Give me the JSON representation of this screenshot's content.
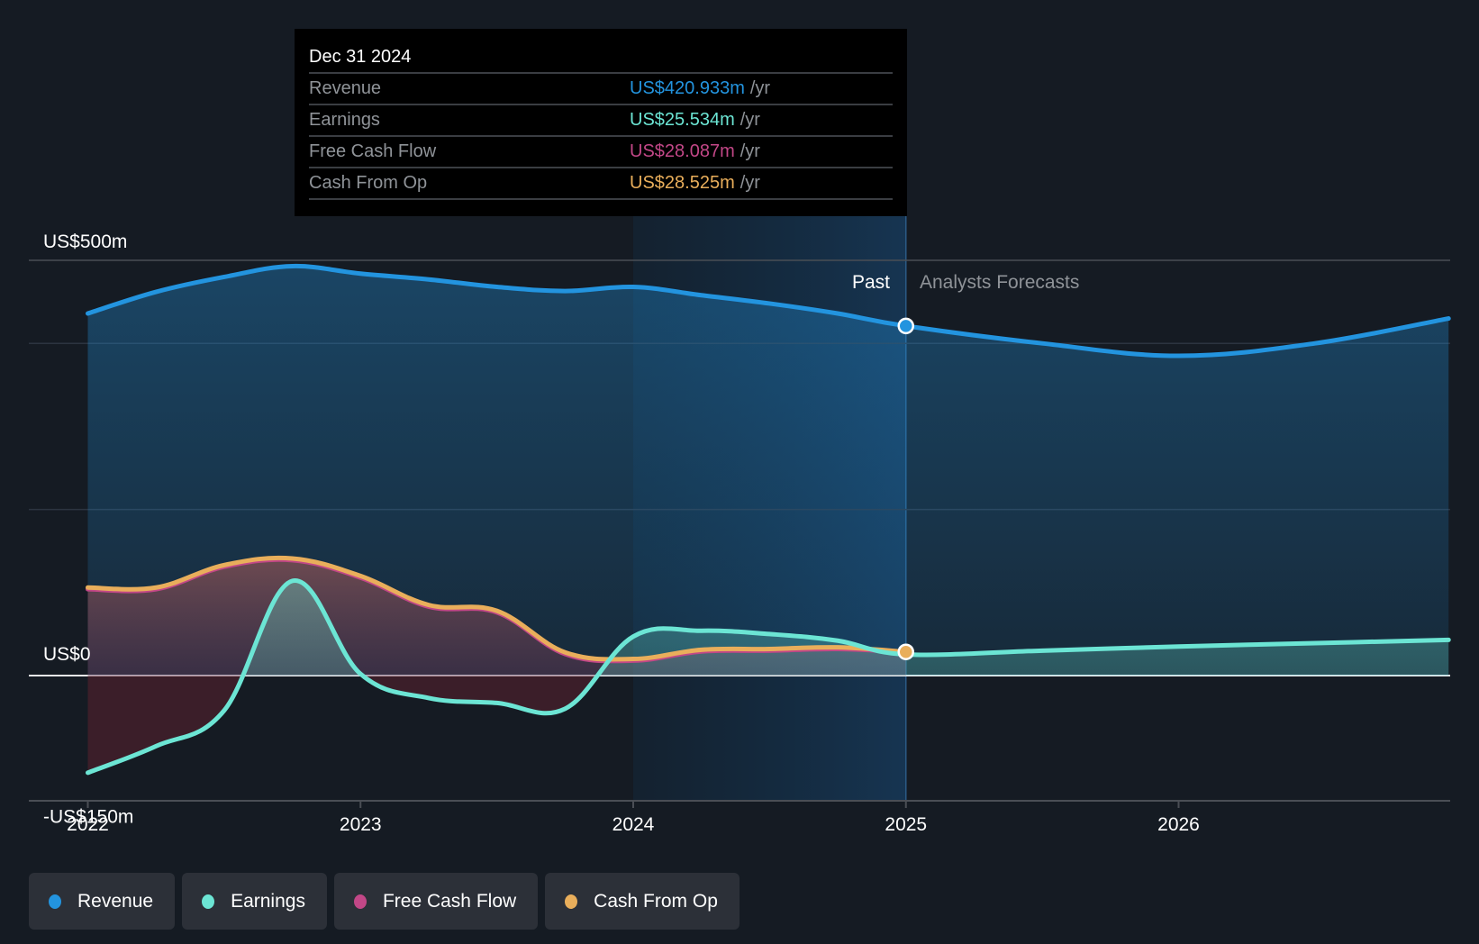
{
  "tooltip": {
    "date": "Dec 31 2024",
    "rows": [
      {
        "label": "Revenue",
        "value": "US$420.933m",
        "unit": "/yr",
        "color": "#2394df"
      },
      {
        "label": "Earnings",
        "value": "US$25.534m",
        "unit": "/yr",
        "color": "#6ce5d4"
      },
      {
        "label": "Free Cash Flow",
        "value": "US$28.087m",
        "unit": "/yr",
        "color": "#c24787"
      },
      {
        "label": "Cash From Op",
        "value": "US$28.525m",
        "unit": "/yr",
        "color": "#e9ae5b"
      }
    ]
  },
  "regions": {
    "past_label": "Past",
    "forecast_label": "Analysts Forecasts",
    "divider_x": 2025.0
  },
  "legend": [
    {
      "label": "Revenue",
      "color": "#2394df"
    },
    {
      "label": "Earnings",
      "color": "#6ce5d4"
    },
    {
      "label": "Free Cash Flow",
      "color": "#c24787"
    },
    {
      "label": "Cash From Op",
      "color": "#e9ae5b"
    }
  ],
  "chart_data": {
    "type": "area",
    "title": "",
    "xlabel": "",
    "ylabel": "",
    "x_ticks": [
      2022,
      2023,
      2024,
      2025,
      2026
    ],
    "x_tick_labels": [
      "2022",
      "2023",
      "2024",
      "2025",
      "2026"
    ],
    "xlim": [
      2021.8,
      2026.99
    ],
    "ylim": [
      -150,
      500
    ],
    "y_labels": [
      {
        "value": 500,
        "label": "US$500m"
      },
      {
        "value": 0,
        "label": "US$0"
      },
      {
        "value": -150,
        "label": "-US$150m"
      }
    ],
    "gridlines": [
      500,
      400,
      200
    ],
    "legend_position": "bottom-left",
    "highlight": {
      "x_start": 2024.0,
      "x_end": 2025.0
    },
    "series": [
      {
        "name": "Revenue",
        "color": "#2394df",
        "unit": "US$m",
        "points": [
          [
            2022.0,
            436
          ],
          [
            2022.25,
            462
          ],
          [
            2022.5,
            480
          ],
          [
            2022.75,
            493
          ],
          [
            2023.0,
            484
          ],
          [
            2023.25,
            477
          ],
          [
            2023.5,
            468
          ],
          [
            2023.75,
            463
          ],
          [
            2024.0,
            468
          ],
          [
            2024.25,
            458
          ],
          [
            2024.5,
            448
          ],
          [
            2024.75,
            436
          ],
          [
            2025.0,
            421
          ],
          [
            2025.5,
            400
          ],
          [
            2026.0,
            385
          ],
          [
            2026.5,
            400
          ],
          [
            2026.99,
            430
          ]
        ]
      },
      {
        "name": "Earnings",
        "color": "#6ce5d4",
        "unit": "US$m",
        "points": [
          [
            2022.0,
            -117
          ],
          [
            2022.25,
            -85
          ],
          [
            2022.5,
            -42
          ],
          [
            2022.75,
            114
          ],
          [
            2023.0,
            2
          ],
          [
            2023.25,
            -27
          ],
          [
            2023.5,
            -33
          ],
          [
            2023.75,
            -40
          ],
          [
            2024.0,
            47
          ],
          [
            2024.25,
            54
          ],
          [
            2024.5,
            50
          ],
          [
            2024.75,
            42
          ],
          [
            2025.0,
            25.5
          ],
          [
            2025.5,
            30
          ],
          [
            2026.0,
            35
          ],
          [
            2026.5,
            39
          ],
          [
            2026.99,
            43
          ]
        ]
      },
      {
        "name": "Free Cash Flow",
        "color": "#c24787",
        "unit": "US$m",
        "points": [
          [
            2022.0,
            104
          ],
          [
            2022.25,
            104
          ],
          [
            2022.5,
            131
          ],
          [
            2022.75,
            139
          ],
          [
            2023.0,
            118
          ],
          [
            2023.25,
            83
          ],
          [
            2023.5,
            76
          ],
          [
            2023.75,
            26
          ],
          [
            2024.0,
            18
          ],
          [
            2024.25,
            29
          ],
          [
            2024.5,
            30
          ],
          [
            2024.75,
            32
          ],
          [
            2025.0,
            28.1
          ]
        ]
      },
      {
        "name": "Cash From Op",
        "color": "#e9ae5b",
        "unit": "US$m",
        "points": [
          [
            2022.0,
            106
          ],
          [
            2022.25,
            106
          ],
          [
            2022.5,
            133
          ],
          [
            2022.75,
            141
          ],
          [
            2023.0,
            120
          ],
          [
            2023.25,
            85
          ],
          [
            2023.5,
            78
          ],
          [
            2023.75,
            28
          ],
          [
            2024.0,
            20
          ],
          [
            2024.25,
            31
          ],
          [
            2024.5,
            32
          ],
          [
            2024.75,
            34
          ],
          [
            2025.0,
            28.5
          ]
        ]
      }
    ]
  }
}
